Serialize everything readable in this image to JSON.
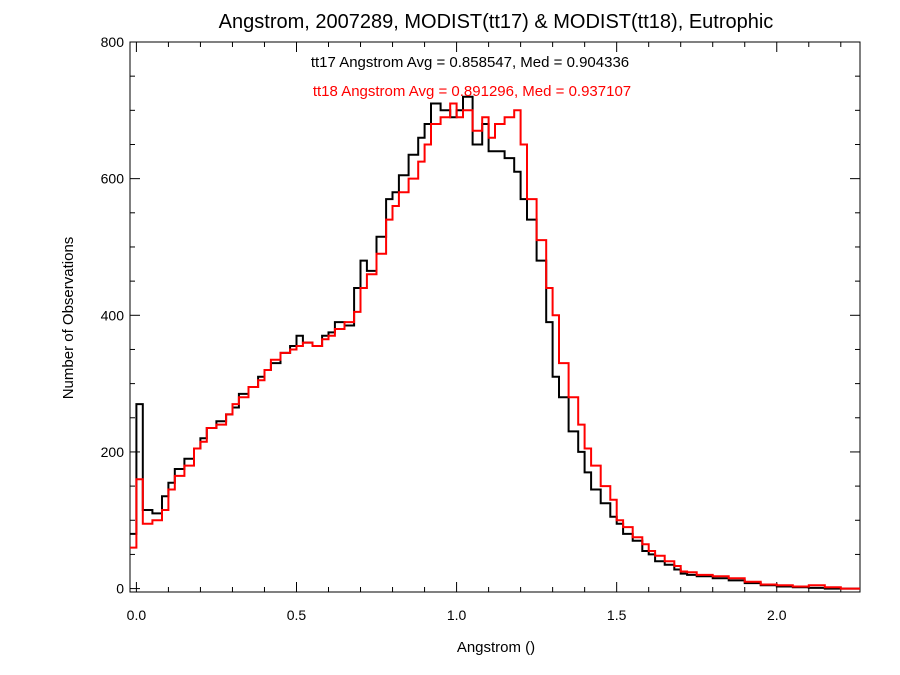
{
  "chart_data": {
    "type": "line",
    "step": true,
    "title": "Angstrom, 2007289, MODIST(tt17) & MODIST(tt18), Eutrophic",
    "xlabel": "Angstrom ()",
    "ylabel": "Number of Observations",
    "xlim": [
      -0.02,
      2.26
    ],
    "ylim": [
      -5,
      800
    ],
    "xticks": [
      0.0,
      0.5,
      1.0,
      1.5,
      2.0
    ],
    "xtick_labels": [
      "0.0",
      "0.5",
      "1.0",
      "1.5",
      "2.0"
    ],
    "yticks": [
      0,
      200,
      400,
      600,
      800
    ],
    "ytick_labels": [
      "0",
      "200",
      "400",
      "600",
      "800"
    ],
    "grid": false,
    "annotations": [
      {
        "text": "tt17 Angstrom Avg = 0.858547, Med = 0.904336",
        "color": "#000000"
      },
      {
        "text": "tt18 Angstrom Avg = 0.891296, Med = 0.937107",
        "color": "#ff0000"
      }
    ],
    "series": [
      {
        "color": "#000000",
        "x": [
          -0.02,
          0.0,
          0.02,
          0.05,
          0.08,
          0.1,
          0.12,
          0.15,
          0.18,
          0.2,
          0.22,
          0.25,
          0.28,
          0.3,
          0.32,
          0.35,
          0.38,
          0.4,
          0.42,
          0.45,
          0.48,
          0.5,
          0.52,
          0.55,
          0.58,
          0.6,
          0.62,
          0.65,
          0.68,
          0.7,
          0.72,
          0.75,
          0.78,
          0.8,
          0.82,
          0.85,
          0.88,
          0.9,
          0.92,
          0.95,
          0.98,
          1.0,
          1.02,
          1.05,
          1.08,
          1.1,
          1.12,
          1.15,
          1.18,
          1.2,
          1.22,
          1.25,
          1.28,
          1.3,
          1.32,
          1.35,
          1.38,
          1.4,
          1.42,
          1.45,
          1.48,
          1.5,
          1.52,
          1.55,
          1.58,
          1.6,
          1.62,
          1.65,
          1.68,
          1.7,
          1.72,
          1.75,
          1.8,
          1.85,
          1.9,
          1.95,
          2.0,
          2.05,
          2.1,
          2.15,
          2.2,
          2.26
        ],
        "values": [
          80,
          270,
          115,
          110,
          135,
          155,
          175,
          190,
          205,
          220,
          235,
          245,
          255,
          265,
          285,
          295,
          310,
          320,
          330,
          345,
          355,
          370,
          360,
          355,
          370,
          375,
          390,
          385,
          440,
          480,
          465,
          515,
          570,
          580,
          605,
          635,
          660,
          680,
          710,
          700,
          690,
          700,
          720,
          650,
          680,
          640,
          640,
          630,
          610,
          570,
          540,
          480,
          390,
          310,
          280,
          230,
          200,
          170,
          145,
          125,
          105,
          95,
          80,
          70,
          55,
          50,
          40,
          35,
          28,
          22,
          20,
          18,
          15,
          12,
          8,
          5,
          3,
          2,
          1,
          0,
          0,
          0
        ]
      },
      {
        "color": "#ff0000",
        "x": [
          -0.02,
          0.0,
          0.02,
          0.05,
          0.08,
          0.1,
          0.12,
          0.15,
          0.18,
          0.2,
          0.22,
          0.25,
          0.28,
          0.3,
          0.32,
          0.35,
          0.38,
          0.4,
          0.42,
          0.45,
          0.48,
          0.5,
          0.52,
          0.55,
          0.58,
          0.6,
          0.62,
          0.65,
          0.68,
          0.7,
          0.72,
          0.75,
          0.78,
          0.8,
          0.82,
          0.85,
          0.88,
          0.9,
          0.92,
          0.95,
          0.98,
          1.0,
          1.02,
          1.05,
          1.08,
          1.1,
          1.12,
          1.15,
          1.18,
          1.2,
          1.22,
          1.25,
          1.28,
          1.3,
          1.32,
          1.35,
          1.38,
          1.4,
          1.42,
          1.45,
          1.48,
          1.5,
          1.52,
          1.55,
          1.58,
          1.6,
          1.62,
          1.65,
          1.68,
          1.7,
          1.72,
          1.75,
          1.8,
          1.85,
          1.9,
          1.95,
          2.0,
          2.05,
          2.1,
          2.15,
          2.2,
          2.26
        ],
        "values": [
          60,
          160,
          95,
          100,
          115,
          145,
          165,
          180,
          205,
          215,
          235,
          240,
          255,
          270,
          280,
          295,
          305,
          320,
          335,
          345,
          350,
          355,
          360,
          355,
          365,
          370,
          380,
          390,
          405,
          440,
          460,
          490,
          540,
          560,
          580,
          600,
          625,
          650,
          680,
          690,
          710,
          690,
          700,
          670,
          690,
          660,
          680,
          690,
          700,
          650,
          570,
          510,
          440,
          400,
          330,
          280,
          240,
          205,
          180,
          150,
          130,
          100,
          90,
          75,
          65,
          55,
          48,
          40,
          33,
          25,
          24,
          20,
          18,
          15,
          10,
          6,
          5,
          3,
          5,
          2,
          0,
          0
        ]
      }
    ]
  }
}
